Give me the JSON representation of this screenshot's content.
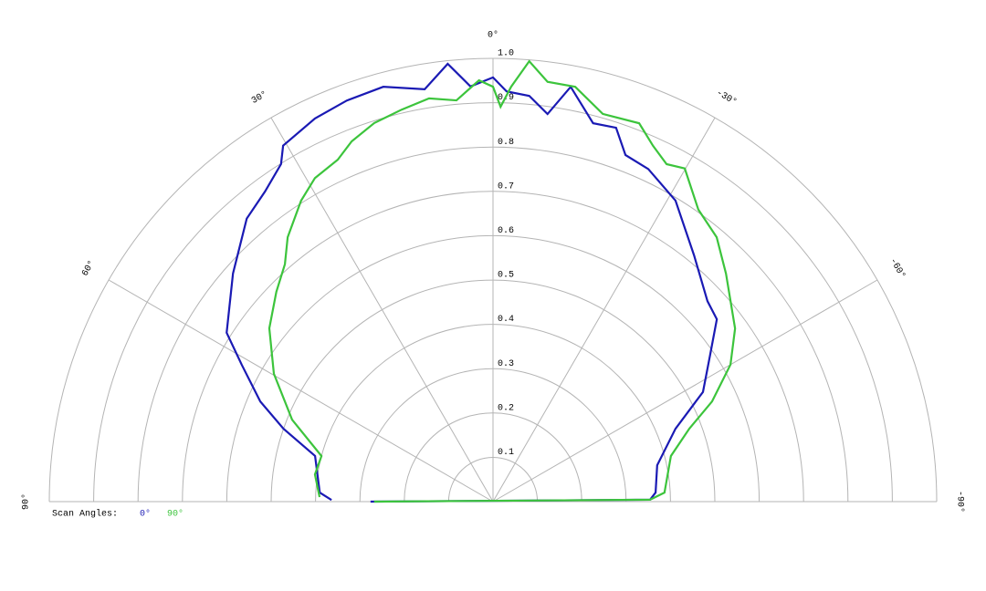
{
  "chart_data": {
    "type": "polar",
    "rlim": [
      0,
      1
    ],
    "rticks": [
      0.1,
      0.2,
      0.3,
      0.4,
      0.5,
      0.6,
      0.7,
      0.8,
      0.9,
      {
        "value": 1,
        "label": "1.0"
      }
    ],
    "thetalim": [
      -90,
      90
    ],
    "thetaticks": [
      {
        "value": 90,
        "label": "90°"
      },
      {
        "value": 60,
        "label": "60°"
      },
      {
        "value": 30,
        "label": "30°"
      },
      {
        "value": 0,
        "label": "0°"
      },
      {
        "value": -30,
        "label": "-30°"
      },
      {
        "value": -60,
        "label": "-60°"
      },
      {
        "value": -90,
        "label": "-90°"
      }
    ],
    "legend_title": "Scan Angles:",
    "grid": true,
    "series": [
      {
        "name": "0°",
        "color": "#1a1ab4",
        "theta": [
          89.4,
          87,
          75.6,
          70.8,
          66.7,
          61.4,
          57.6,
          48.7,
          41,
          36.3,
          32.1,
          30.5,
          24.9,
          20,
          14.8,
          9.4,
          5.9,
          3.1,
          0,
          -1.9,
          -5.1,
          -8,
          -10.6,
          -14.8,
          -18.2,
          -20.9,
          -25,
          -31.2,
          -39.2,
          -46.9,
          -50.8,
          -56,
          -62.4,
          -68.2,
          -77.5,
          -86.8,
          -89.3,
          90
        ],
        "r": [
          0.364,
          0.391,
          0.414,
          0.5,
          0.571,
          0.645,
          0.711,
          0.78,
          0.846,
          0.868,
          0.899,
          0.932,
          0.953,
          0.963,
          0.968,
          0.943,
          0.993,
          0.938,
          0.957,
          0.926,
          0.919,
          0.883,
          0.952,
          0.883,
          0.888,
          0.837,
          0.828,
          0.794,
          0.717,
          0.662,
          0.651,
          0.59,
          0.534,
          0.443,
          0.379,
          0.367,
          0.354,
          0.276
        ]
      },
      {
        "name": "90°",
        "color": "#3cc43c",
        "theta": [
          88.5,
          81.3,
          75.1,
          67.8,
          59.7,
          52.2,
          45.9,
          41.2,
          37.8,
          32.5,
          28.8,
          24.4,
          21.4,
          17.4,
          13.1,
          9,
          5.2,
          1.9,
          0,
          -1.1,
          -2.5,
          -4.7,
          -7.4,
          -11.2,
          -15.8,
          -21.1,
          -24.2,
          -27.2,
          -29.9,
          -35.1,
          -40.2,
          -45.6,
          -54.4,
          -60,
          -65.4,
          -69.6,
          -75.6,
          -87,
          -89.3,
          90
        ],
        "r": [
          0.391,
          0.406,
          0.4,
          0.489,
          0.572,
          0.638,
          0.68,
          0.712,
          0.755,
          0.805,
          0.833,
          0.847,
          0.873,
          0.895,
          0.908,
          0.921,
          0.909,
          0.951,
          0.936,
          0.891,
          0.937,
          0.997,
          0.955,
          0.954,
          0.909,
          0.915,
          0.88,
          0.856,
          0.867,
          0.805,
          0.781,
          0.735,
          0.671,
          0.618,
          0.543,
          0.472,
          0.414,
          0.387,
          0.354,
          0.268
        ]
      }
    ]
  }
}
